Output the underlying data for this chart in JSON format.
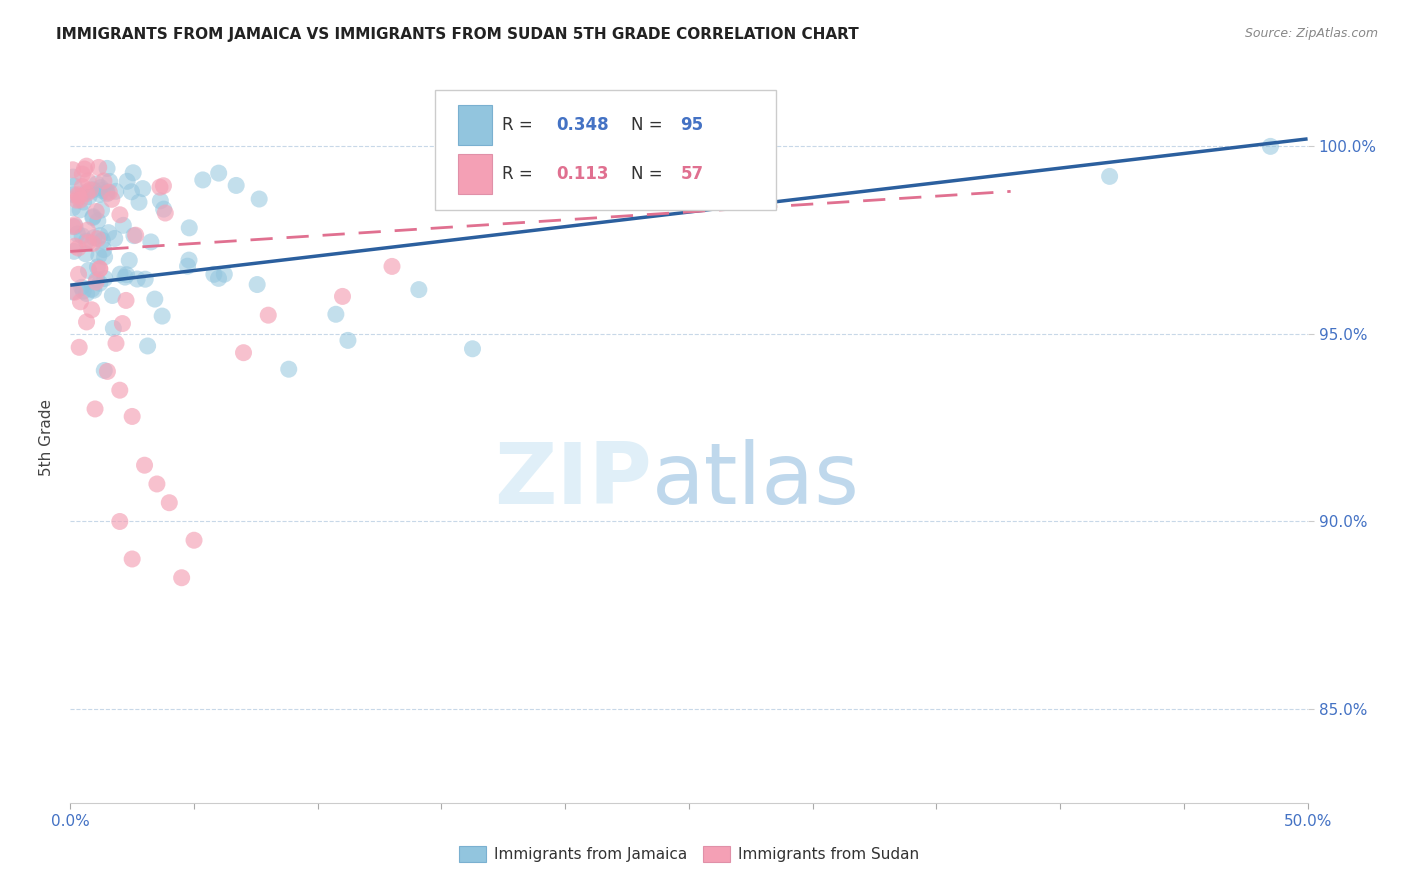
{
  "title": "IMMIGRANTS FROM JAMAICA VS IMMIGRANTS FROM SUDAN 5TH GRADE CORRELATION CHART",
  "source": "Source: ZipAtlas.com",
  "ylabel": "5th Grade",
  "right_yticks": [
    85.0,
    90.0,
    95.0,
    100.0
  ],
  "xlim": [
    0.0,
    50.0
  ],
  "ylim": [
    82.5,
    102.0
  ],
  "jamaica_color": "#92c5de",
  "sudan_color": "#f4a0b5",
  "jamaica_R": 0.348,
  "jamaica_N": 95,
  "sudan_R": 0.113,
  "sudan_N": 57,
  "legend_label_jamaica": "Immigrants from Jamaica",
  "legend_label_sudan": "Immigrants from Sudan",
  "watermark_zip": "ZIP",
  "watermark_atlas": "atlas",
  "background_color": "#ffffff",
  "grid_color": "#c8d8e8",
  "axis_color": "#4472c4",
  "trend_blue": "#2b5f9e",
  "trend_pink": "#e07090"
}
